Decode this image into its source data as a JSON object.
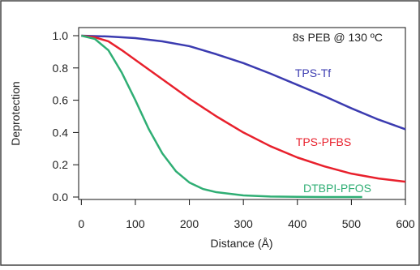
{
  "chart_data": {
    "type": "line",
    "title": "",
    "xlabel": "Distance (Å)",
    "ylabel": "Deprotection",
    "xlim": [
      -5,
      600
    ],
    "ylim": [
      0.0,
      1.0
    ],
    "x_ticks": [
      0,
      100,
      200,
      300,
      400,
      500,
      600
    ],
    "y_ticks": [
      0.0,
      0.2,
      0.4,
      0.6,
      0.8,
      1.0
    ],
    "x_tick_labels": [
      "0",
      "100",
      "200",
      "300",
      "400",
      "500",
      "600"
    ],
    "y_tick_labels": [
      "0.0",
      "0.2",
      "0.4",
      "0.6",
      "0.8",
      "1.0"
    ],
    "grid": false,
    "annotation": "8s PEB @ 130 ºC",
    "series": [
      {
        "name": "TPS-Tf",
        "color": "#3b3bb0",
        "x": [
          0,
          50,
          100,
          150,
          200,
          250,
          300,
          350,
          400,
          450,
          500,
          550,
          600
        ],
        "y": [
          1.0,
          0.995,
          0.985,
          0.965,
          0.935,
          0.885,
          0.83,
          0.765,
          0.695,
          0.625,
          0.55,
          0.48,
          0.42
        ]
      },
      {
        "name": "TPS-PFBS",
        "color": "#e8202c",
        "x": [
          0,
          25,
          50,
          75,
          100,
          150,
          200,
          250,
          300,
          350,
          400,
          450,
          500,
          550,
          600
        ],
        "y": [
          1.0,
          0.99,
          0.965,
          0.91,
          0.85,
          0.73,
          0.61,
          0.5,
          0.4,
          0.315,
          0.245,
          0.19,
          0.145,
          0.115,
          0.095
        ]
      },
      {
        "name": "DTBPI-PFOS",
        "color": "#2fae74",
        "x": [
          0,
          25,
          50,
          75,
          100,
          125,
          150,
          175,
          200,
          225,
          250,
          300,
          350,
          400,
          450,
          520
        ],
        "y": [
          1.0,
          0.98,
          0.91,
          0.77,
          0.6,
          0.42,
          0.27,
          0.16,
          0.09,
          0.05,
          0.03,
          0.01,
          0.003,
          0.001,
          0.0,
          0.0
        ]
      }
    ]
  }
}
